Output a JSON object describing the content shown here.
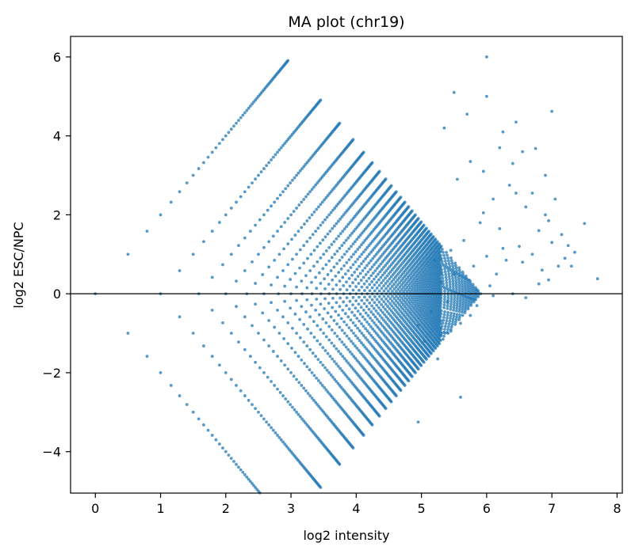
{
  "chart_data": {
    "type": "scatter",
    "title": "MA plot (chr19)",
    "xlabel": "log2 intensity",
    "ylabel": "log2 ESC/NPC",
    "xlim": [
      -0.38,
      8.08
    ],
    "ylim": [
      -5.05,
      6.52
    ],
    "xticks": [
      0,
      1,
      2,
      3,
      4,
      5,
      6,
      7,
      8
    ],
    "yticks": [
      -4,
      -2,
      0,
      2,
      4,
      6
    ],
    "reference_line_y": 0,
    "grid": false,
    "legend": "none",
    "point_color": "#1f77b4",
    "points": {
      "lattice_description": "integer read-count pairs (a,b) with a,b from 1 to 60; x = (log2 a + log2 b)/2, y = log2 a - log2 b",
      "count_range": [
        1,
        60
      ],
      "extra": [
        [
          6.0,
          6.0
        ],
        [
          5.5,
          5.1
        ],
        [
          5.7,
          4.55
        ],
        [
          6.0,
          5.0
        ],
        [
          7.0,
          4.62
        ],
        [
          6.45,
          4.35
        ],
        [
          6.55,
          3.6
        ],
        [
          6.75,
          3.68
        ],
        [
          7.5,
          1.78
        ],
        [
          7.7,
          0.38
        ],
        [
          7.25,
          1.22
        ],
        [
          7.1,
          0.7
        ],
        [
          6.95,
          0.35
        ],
        [
          6.4,
          0.0
        ],
        [
          6.8,
          1.6
        ],
        [
          6.6,
          2.2
        ],
        [
          6.9,
          2.0
        ],
        [
          7.35,
          1.05
        ],
        [
          7.2,
          0.9
        ],
        [
          6.5,
          1.2
        ],
        [
          6.3,
          0.85
        ],
        [
          6.15,
          0.5
        ],
        [
          6.05,
          0.2
        ],
        [
          5.85,
          -0.3
        ],
        [
          5.75,
          -0.55
        ],
        [
          5.6,
          -0.75
        ],
        [
          5.45,
          -0.95
        ],
        [
          5.3,
          -1.05
        ],
        [
          5.05,
          -1.2
        ],
        [
          5.25,
          -1.65
        ],
        [
          5.6,
          -2.62
        ],
        [
          4.95,
          -3.25
        ],
        [
          5.35,
          4.2
        ],
        [
          6.25,
          4.1
        ],
        [
          5.95,
          3.1
        ],
        [
          6.35,
          2.75
        ],
        [
          6.1,
          2.4
        ],
        [
          5.9,
          1.8
        ],
        [
          5.65,
          1.35
        ],
        [
          5.45,
          1.1
        ],
        [
          6.2,
          1.65
        ],
        [
          6.55,
          0.8
        ],
        [
          6.85,
          0.6
        ],
        [
          7.0,
          1.3
        ],
        [
          6.7,
          1.0
        ],
        [
          6.0,
          0.95
        ],
        [
          5.8,
          0.7
        ],
        [
          5.5,
          0.5
        ],
        [
          5.3,
          0.3
        ],
        [
          5.15,
          -0.45
        ],
        [
          4.95,
          -0.8
        ],
        [
          6.6,
          -0.1
        ],
        [
          7.15,
          1.5
        ],
        [
          6.45,
          2.55
        ],
        [
          6.9,
          3.0
        ],
        [
          5.75,
          3.35
        ],
        [
          5.95,
          2.05
        ],
        [
          6.25,
          1.15
        ],
        [
          6.1,
          -0.05
        ],
        [
          5.4,
          -0.2
        ],
        [
          6.7,
          2.55
        ],
        [
          7.05,
          2.4
        ],
        [
          6.4,
          3.3
        ],
        [
          6.8,
          0.25
        ],
        [
          7.3,
          0.7
        ],
        [
          5.55,
          2.9
        ],
        [
          6.2,
          3.7
        ],
        [
          5.85,
          0.1
        ],
        [
          5.2,
          0.85
        ],
        [
          6.95,
          1.85
        ]
      ]
    }
  }
}
